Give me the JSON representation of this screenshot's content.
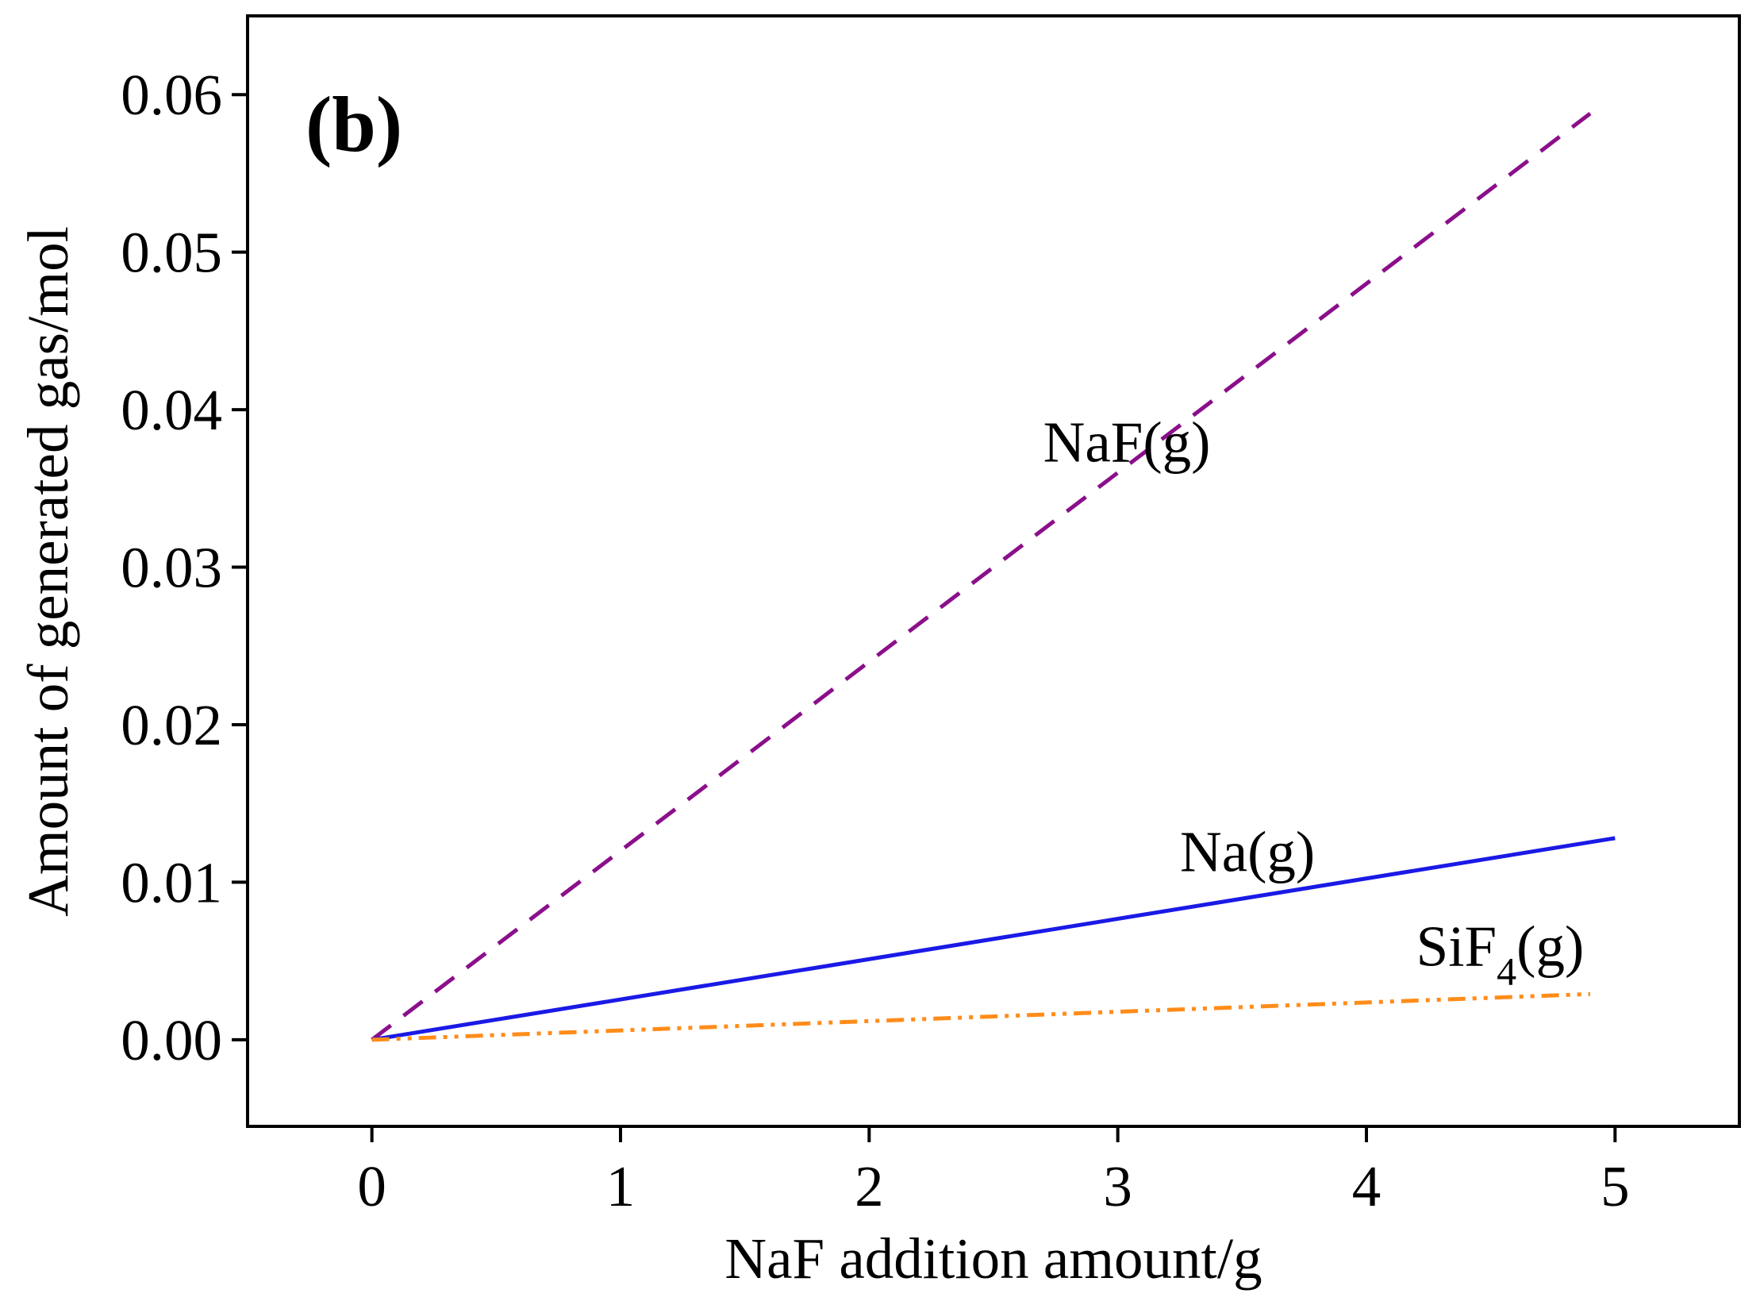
{
  "chart_data": {
    "type": "line",
    "panel_label": "(b)",
    "xlabel": "NaF addition amount/g",
    "ylabel": "Amount of generated gas/mol",
    "xlim": [
      -0.5,
      5.5
    ],
    "ylim": [
      -0.0055,
      0.065
    ],
    "x_ticks": [
      0,
      1,
      2,
      3,
      4,
      5
    ],
    "x_tick_labels": [
      "0",
      "1",
      "2",
      "3",
      "4",
      "5"
    ],
    "y_ticks": [
      0.0,
      0.01,
      0.02,
      0.03,
      0.04,
      0.05,
      0.06
    ],
    "y_tick_labels": [
      "0.00",
      "0.01",
      "0.02",
      "0.03",
      "0.04",
      "0.05",
      "0.06"
    ],
    "grid": false,
    "series": [
      {
        "name": "NaF(g)",
        "label_text": "NaF(g)",
        "color": "#8b0f8b",
        "style": "dashed",
        "x": [
          0,
          4.9
        ],
        "values": [
          0.0,
          0.0588
        ],
        "label_pos": [
          2.7,
          0.0367
        ]
      },
      {
        "name": "Na(g)",
        "label_text": "Na(g)",
        "color": "#1a1ae6",
        "style": "solid",
        "x": [
          0,
          5
        ],
        "values": [
          0.0,
          0.0128
        ],
        "label_pos": [
          3.25,
          0.0107
        ]
      },
      {
        "name": "SiF4(g)",
        "label_base": "SiF",
        "label_sub": "4",
        "label_tail": "(g)",
        "color": "#ff8c1a",
        "style": "dashdotdot",
        "x": [
          0,
          4.9
        ],
        "values": [
          0.0,
          0.0029
        ],
        "label_pos": [
          4.2,
          0.0047
        ]
      }
    ]
  }
}
